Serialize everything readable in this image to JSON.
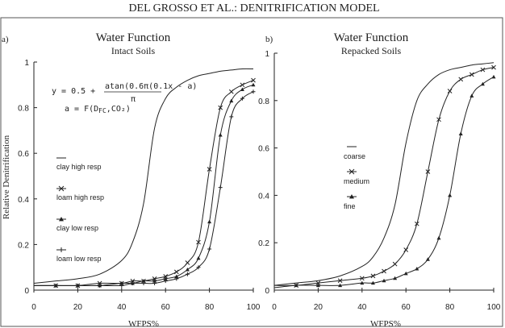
{
  "header": {
    "running_title": "DEL GROSSO ET AL.: DENITRIFICATION MODEL"
  },
  "equation": {
    "line1_prefix": "y = 0.5 +",
    "numerator": "atan(0.6π(0.1x - a)",
    "denominator": "π",
    "line2": "a = F(D",
    "line2_sub": "FC",
    "line2_end": ",CO₂)"
  },
  "chart_data": [
    {
      "type": "line",
      "panel_label": "a)",
      "title": "Water Function",
      "subtitle": "Intact Soils",
      "xlabel": "WFPS%",
      "ylabel": "Relative Denitrification",
      "xlim": [
        0,
        100
      ],
      "ylim": [
        0,
        1
      ],
      "x_ticks": [
        "0",
        "20",
        "40",
        "60",
        "80",
        "100"
      ],
      "y_ticks": [
        "0",
        "0.2",
        "0.4",
        "0.6",
        "0.8",
        "1"
      ],
      "grid": false,
      "legend_position": "left",
      "x": [
        0,
        10,
        20,
        30,
        40,
        45,
        50,
        55,
        60,
        65,
        70,
        75,
        80,
        85,
        90,
        95,
        100
      ],
      "series": [
        {
          "name": "clay high resp",
          "marker": "none",
          "values": [
            0.03,
            0.04,
            0.05,
            0.07,
            0.13,
            0.21,
            0.38,
            0.71,
            0.84,
            0.89,
            0.92,
            0.94,
            0.95,
            0.96,
            0.965,
            0.97,
            0.97
          ]
        },
        {
          "name": "loam high resp",
          "marker": "x",
          "values": [
            0.02,
            0.02,
            0.02,
            0.03,
            0.03,
            0.04,
            0.04,
            0.05,
            0.06,
            0.08,
            0.12,
            0.21,
            0.53,
            0.8,
            0.87,
            0.9,
            0.92
          ]
        },
        {
          "name": "clay low resp",
          "marker": "triangle",
          "values": [
            0.02,
            0.02,
            0.02,
            0.02,
            0.03,
            0.03,
            0.04,
            0.04,
            0.05,
            0.06,
            0.09,
            0.14,
            0.3,
            0.68,
            0.83,
            0.88,
            0.9
          ]
        },
        {
          "name": "loam low resp",
          "marker": "plus",
          "values": [
            0.02,
            0.02,
            0.02,
            0.02,
            0.02,
            0.03,
            0.03,
            0.03,
            0.04,
            0.05,
            0.07,
            0.1,
            0.18,
            0.45,
            0.76,
            0.84,
            0.87
          ]
        }
      ]
    },
    {
      "type": "line",
      "panel_label": "b)",
      "title": "Water Function",
      "subtitle": "Repacked Soils",
      "xlabel": "WFPS%",
      "ylabel": "",
      "xlim": [
        0,
        100
      ],
      "ylim": [
        0,
        1
      ],
      "x_ticks": [
        "0",
        "20",
        "40",
        "60",
        "80",
        "100"
      ],
      "y_ticks": [
        "0",
        "0.2",
        "0.4",
        "0.6",
        "0.8",
        "1"
      ],
      "grid": false,
      "legend_position": "middle",
      "x": [
        0,
        10,
        20,
        30,
        40,
        45,
        50,
        55,
        60,
        65,
        70,
        75,
        80,
        85,
        90,
        95,
        100
      ],
      "series": [
        {
          "name": "coarse",
          "marker": "none",
          "values": [
            0.02,
            0.03,
            0.04,
            0.06,
            0.1,
            0.14,
            0.22,
            0.36,
            0.62,
            0.8,
            0.87,
            0.91,
            0.93,
            0.94,
            0.95,
            0.955,
            0.96
          ]
        },
        {
          "name": "medium",
          "marker": "x",
          "values": [
            0.02,
            0.02,
            0.03,
            0.04,
            0.05,
            0.06,
            0.08,
            0.11,
            0.17,
            0.28,
            0.5,
            0.72,
            0.84,
            0.89,
            0.91,
            0.93,
            0.94
          ]
        },
        {
          "name": "fine",
          "marker": "triangle",
          "values": [
            0.01,
            0.02,
            0.02,
            0.02,
            0.03,
            0.03,
            0.04,
            0.05,
            0.07,
            0.09,
            0.13,
            0.22,
            0.4,
            0.66,
            0.82,
            0.87,
            0.9
          ]
        }
      ]
    }
  ]
}
